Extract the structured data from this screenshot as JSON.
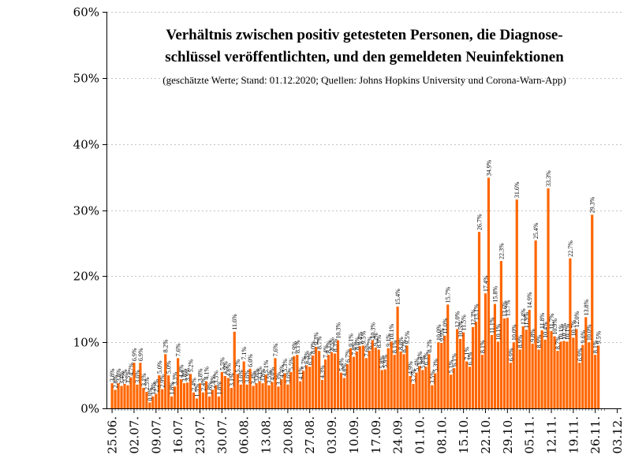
{
  "chart_data": {
    "type": "bar",
    "title_lines": [
      "Verhältnis zwischen positiv getesteten Personen, die Diagnose-",
      "schlüssel veröffentlichten, und den gemeldeten Neuinfektionen"
    ],
    "subtitle": "(geschätzte Werte; Stand: 01.12.2020; Quellen: Johns Hopkins University und Corona-Warn-App)",
    "xlabel": "",
    "ylabel": "",
    "ylim": [
      0,
      60
    ],
    "yticks": [
      "0%",
      "10%",
      "20%",
      "30%",
      "40%",
      "50%",
      "60%"
    ],
    "ytick_values": [
      0,
      10,
      20,
      30,
      40,
      50,
      60
    ],
    "xtick_labels": [
      "25.06.",
      "02.07.",
      "09.07.",
      "16.07.",
      "23.07.",
      "30.07.",
      "06.08.",
      "13.08.",
      "20.08.",
      "27.08.",
      "03.09.",
      "10.09.",
      "17.09.",
      "24.09.",
      "01.10.",
      "08.10.",
      "15.10.",
      "22.10.",
      "29.10.",
      "05.11.",
      "12.11.",
      "19.11.",
      "26.11.",
      "03.12."
    ],
    "grid": "horizontal dotted",
    "bar_color": "#ff6600",
    "values": [
      3.8,
      2.8,
      3.8,
      3.4,
      3.7,
      3.5,
      4.7,
      6.9,
      3.6,
      6.9,
      3.1,
      2.5,
      0.9,
      1.8,
      2.2,
      5.0,
      2.9,
      8.2,
      5.0,
      1.8,
      3.3,
      7.6,
      4.4,
      3.8,
      3.9,
      5.2,
      2.4,
      1.5,
      3.8,
      2.4,
      4.1,
      1.8,
      2.8,
      3.5,
      1.8,
      5.5,
      4.9,
      4.6,
      3.1,
      11.6,
      5.2,
      3.6,
      7.1,
      3.6,
      6.0,
      3.4,
      3.8,
      4.1,
      3.8,
      5.1,
      3.5,
      4.0,
      7.6,
      3.3,
      4.4,
      5.3,
      3.6,
      5.5,
      7.9,
      8.1,
      4.1,
      5.7,
      6.5,
      6.3,
      8.0,
      9.3,
      8.7,
      4.3,
      7.4,
      8.1,
      8.5,
      8.3,
      10.3,
      5.4,
      4.6,
      6.7,
      9.1,
      7.8,
      8.6,
      9.4,
      9.5,
      7.6,
      8.7,
      10.3,
      9.2,
      8.9,
      5.8,
      5.9,
      9.1,
      10.1,
      8.1,
      15.4,
      8.6,
      8.2,
      9.5,
      4.9,
      3.7,
      5.4,
      6.4,
      5.8,
      6.3,
      8.2,
      3.5,
      5.3,
      10.0,
      9.9,
      11.0,
      15.7,
      5.1,
      6.1,
      12.0,
      10.5,
      11.5,
      7.1,
      6.3,
      12.3,
      13.1,
      26.7,
      8.1,
      17.4,
      34.9,
      11.1,
      15.8,
      10.1,
      22.3,
      13.6,
      13.7,
      6.9,
      10.0,
      31.6,
      8.9,
      12.4,
      11.9,
      14.9,
      9.8,
      25.4,
      8.9,
      11.8,
      10.4,
      33.3,
      11.7,
      10.9,
      8.7,
      10.1,
      10.2,
      10.1,
      22.7,
      10.7,
      12.0,
      6.9,
      9.6,
      13.8,
      10.0,
      29.3,
      8.1,
      9.5
    ],
    "data_labels": [
      "3.8%",
      "2.8%",
      "3.8%",
      "3.4%",
      "3.7%",
      "3.5%",
      "4.7%",
      "6.9%",
      "3.6%",
      "6.9%",
      "3.1%",
      "2.5%",
      "0.9%",
      "1.8%",
      "2.2%",
      "5.0%",
      "2.9%",
      "8.2%",
      "5.0%",
      "1.8%",
      "3.3%",
      "7.6%",
      "4.4%",
      "3.8%",
      "3.9%",
      "5.2%",
      "2.4%",
      "1.5%",
      "3.8%",
      "2.4%",
      "4.1%",
      "1.8%",
      "2.8%",
      "3.5%",
      "1.8%",
      "5.5%",
      "4.9%",
      "4.6%",
      "3.1%",
      "11.6%",
      "5.2%",
      "3.6%",
      "7.1%",
      "3.6%",
      "6.0%",
      "3.4%",
      "3.8%",
      "4.1%",
      "3.8%",
      "5.1%",
      "3.5%",
      "4.0%",
      "7.6%",
      "3.3%",
      "4.4%",
      "5.3%",
      "3.6%",
      "5.5%",
      "7.9%",
      "8.1%",
      "4.1%",
      "5.7%",
      "6.5%",
      "6.3%",
      "8.0%",
      "9.3%",
      "8.7%",
      "4.3%",
      "7.4%",
      "8.1%",
      "8.5%",
      "8.3%",
      "10.3%",
      "5.4%",
      "4.6%",
      "6.7%",
      "9.1%",
      "7.8%",
      "8.6%",
      "9.4%",
      "9.5%",
      "7.6%",
      "8.7%",
      "10.3%",
      "9.2%",
      "8.9%",
      "5.8%",
      "5.9%",
      "9.1%",
      "10.1%",
      "8.1%",
      "15.4%",
      "8.6%",
      "8.2%",
      "9.5%",
      "4.9%",
      "3.7%",
      "5.4%",
      "6.4%",
      "5.8%",
      "6.3%",
      "8.2%",
      "3.5%",
      "5.3%",
      "10.0%",
      "9.9%",
      "11.0%",
      "15.7%",
      "5.1%",
      "6.1%",
      "12.0%",
      "10.5%",
      "11.5%",
      "7.1%",
      "6.3%",
      "12.3%",
      "13.1%",
      "26.7%",
      "8.1%",
      "17.4%",
      "34.9%",
      "11.1%",
      "15.8%",
      "10.1%",
      "22.3%",
      "13.6%",
      "13.7%",
      "6.9%",
      "10.0%",
      "31.6%",
      "8.9%",
      "12.4%",
      "11.9%",
      "14.9%",
      "9.8%",
      "25.4%",
      "8.9%",
      "11.8%",
      "10.4%",
      "33.3%",
      "11.7%",
      "10.9%",
      "8.7%",
      "10.1%",
      "10.2%",
      "10.1%",
      "22.7%",
      "10.7%",
      "12.0%",
      "6.9%",
      "9.6%",
      "13.8%",
      "10.0%",
      "29.3%",
      "8.1%",
      "9.5%"
    ]
  }
}
